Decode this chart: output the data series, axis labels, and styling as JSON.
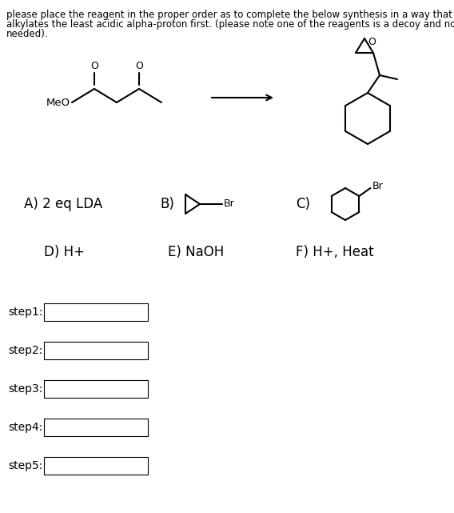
{
  "title_line1": "please place the reagent in the proper order as to complete the below synthesis in a way that",
  "title_line2": "alkylates the least acidic alpha-proton first. (please note one of the reagents is a decoy and not",
  "title_line3": "needed).",
  "bg_color": "#ffffff",
  "text_color": "#000000",
  "font_size_title": 8.5,
  "font_size_reagent": 12,
  "font_size_step": 10,
  "steps": [
    "step1:",
    "step2:",
    "step3:",
    "step4:",
    "step5:"
  ]
}
